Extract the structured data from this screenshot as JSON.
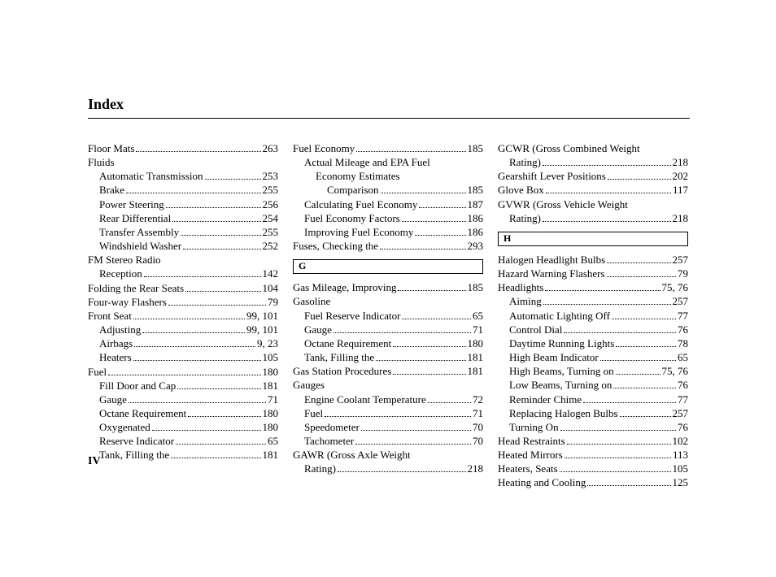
{
  "title": "Index",
  "footer": "IV",
  "columns": [
    {
      "items": [
        {
          "type": "entry",
          "label": "Floor Mats",
          "page": "263",
          "indent": 0
        },
        {
          "type": "entry",
          "label": "Fluids",
          "page": "",
          "indent": 0,
          "nodots": true
        },
        {
          "type": "entry",
          "label": "Automatic Transmission",
          "page": "253",
          "indent": 1
        },
        {
          "type": "entry",
          "label": "Brake",
          "page": "255",
          "indent": 1
        },
        {
          "type": "entry",
          "label": "Power Steering",
          "page": "256",
          "indent": 1
        },
        {
          "type": "entry",
          "label": "Rear Differential",
          "page": "254",
          "indent": 1
        },
        {
          "type": "entry",
          "label": "Transfer Assembly",
          "page": "255",
          "indent": 1
        },
        {
          "type": "entry",
          "label": "Windshield Washer",
          "page": "252",
          "indent": 1
        },
        {
          "type": "entry",
          "label": "FM Stereo Radio",
          "page": "",
          "indent": 0,
          "nodots": true
        },
        {
          "type": "entry",
          "label": "Reception",
          "page": "142",
          "indent": 1
        },
        {
          "type": "entry",
          "label": "Folding the Rear Seats",
          "page": "104",
          "indent": 0
        },
        {
          "type": "entry",
          "label": "Four-way Flashers",
          "page": "79",
          "indent": 0
        },
        {
          "type": "entry",
          "label": "Front Seat",
          "page": "99, 101",
          "indent": 0
        },
        {
          "type": "entry",
          "label": "Adjusting",
          "page": "99, 101",
          "indent": 1
        },
        {
          "type": "entry",
          "label": "Airbags",
          "page": "9, 23",
          "indent": 1
        },
        {
          "type": "entry",
          "label": "Heaters",
          "page": "105",
          "indent": 1
        },
        {
          "type": "entry",
          "label": "Fuel",
          "page": "180",
          "indent": 0
        },
        {
          "type": "entry",
          "label": "Fill Door and Cap",
          "page": "181",
          "indent": 1
        },
        {
          "type": "entry",
          "label": "Gauge",
          "page": "71",
          "indent": 1
        },
        {
          "type": "entry",
          "label": "Octane Requirement",
          "page": "180",
          "indent": 1
        },
        {
          "type": "entry",
          "label": "Oxygenated",
          "page": "180",
          "indent": 1
        },
        {
          "type": "entry",
          "label": "Reserve Indicator",
          "page": "65",
          "indent": 1
        },
        {
          "type": "entry",
          "label": "Tank, Filling the",
          "page": "181",
          "indent": 1
        }
      ]
    },
    {
      "items": [
        {
          "type": "entry",
          "label": "Fuel Economy",
          "page": "185",
          "indent": 0
        },
        {
          "type": "entry",
          "label": "Actual Mileage and EPA Fuel",
          "page": "",
          "indent": 1,
          "nodots": true
        },
        {
          "type": "entry",
          "label": "Economy Estimates",
          "page": "",
          "indent": 2,
          "nodots": true
        },
        {
          "type": "entry",
          "label": "Comparison",
          "page": "185",
          "indent": 3
        },
        {
          "type": "entry",
          "label": "Calculating Fuel Economy",
          "page": "187",
          "indent": 1
        },
        {
          "type": "entry",
          "label": "Fuel Economy Factors",
          "page": "186",
          "indent": 1
        },
        {
          "type": "entry",
          "label": "Improving Fuel Economy",
          "page": "186",
          "indent": 1
        },
        {
          "type": "entry",
          "label": "Fuses, Checking the",
          "page": "293",
          "indent": 0
        },
        {
          "type": "section",
          "letter": "G"
        },
        {
          "type": "entry",
          "label": "Gas Mileage, Improving",
          "page": "185",
          "indent": 0
        },
        {
          "type": "entry",
          "label": "Gasoline",
          "page": "",
          "indent": 0,
          "nodots": true
        },
        {
          "type": "entry",
          "label": "Fuel Reserve Indicator",
          "page": "65",
          "indent": 1
        },
        {
          "type": "entry",
          "label": "Gauge",
          "page": "71",
          "indent": 1
        },
        {
          "type": "entry",
          "label": "Octane Requirement",
          "page": "180",
          "indent": 1
        },
        {
          "type": "entry",
          "label": "Tank, Filling the",
          "page": "181",
          "indent": 1
        },
        {
          "type": "entry",
          "label": "Gas Station Procedures",
          "page": "181",
          "indent": 0
        },
        {
          "type": "entry",
          "label": "Gauges",
          "page": "",
          "indent": 0,
          "nodots": true
        },
        {
          "type": "entry",
          "label": "Engine Coolant Temperature",
          "page": "72",
          "indent": 1
        },
        {
          "type": "entry",
          "label": "Fuel",
          "page": "71",
          "indent": 1
        },
        {
          "type": "entry",
          "label": "Speedometer",
          "page": "70",
          "indent": 1
        },
        {
          "type": "entry",
          "label": "Tachometer",
          "page": "70",
          "indent": 1
        },
        {
          "type": "entry",
          "label": "GAWR (Gross Axle Weight",
          "page": "",
          "indent": 0,
          "nodots": true
        },
        {
          "type": "entry",
          "label": "Rating)",
          "page": "218",
          "indent": 1
        }
      ]
    },
    {
      "items": [
        {
          "type": "entry",
          "label": "GCWR (Gross Combined Weight",
          "page": "",
          "indent": 0,
          "nodots": true
        },
        {
          "type": "entry",
          "label": "Rating)",
          "page": "218",
          "indent": 1
        },
        {
          "type": "entry",
          "label": "Gearshift Lever Positions",
          "page": "202",
          "indent": 0
        },
        {
          "type": "entry",
          "label": "Glove Box",
          "page": "117",
          "indent": 0
        },
        {
          "type": "entry",
          "label": "GVWR (Gross Vehicle Weight",
          "page": "",
          "indent": 0,
          "nodots": true
        },
        {
          "type": "entry",
          "label": "Rating)",
          "page": "218",
          "indent": 1
        },
        {
          "type": "section",
          "letter": "H"
        },
        {
          "type": "entry",
          "label": "Halogen Headlight Bulbs",
          "page": "257",
          "indent": 0
        },
        {
          "type": "entry",
          "label": "Hazard Warning Flashers",
          "page": "79",
          "indent": 0
        },
        {
          "type": "entry",
          "label": "Headlights",
          "page": "75, 76",
          "indent": 0
        },
        {
          "type": "entry",
          "label": "Aiming",
          "page": "257",
          "indent": 1
        },
        {
          "type": "entry",
          "label": "Automatic Lighting Off",
          "page": "77",
          "indent": 1
        },
        {
          "type": "entry",
          "label": "Control Dial",
          "page": "76",
          "indent": 1
        },
        {
          "type": "entry",
          "label": "Daytime Running Lights",
          "page": "78",
          "indent": 1
        },
        {
          "type": "entry",
          "label": "High Beam Indicator",
          "page": "65",
          "indent": 1
        },
        {
          "type": "entry",
          "label": "High Beams, Turning on",
          "page": "75, 76",
          "indent": 1
        },
        {
          "type": "entry",
          "label": "Low Beams, Turning on",
          "page": "76",
          "indent": 1
        },
        {
          "type": "entry",
          "label": "Reminder Chime",
          "page": "77",
          "indent": 1
        },
        {
          "type": "entry",
          "label": "Replacing Halogen Bulbs",
          "page": "257",
          "indent": 1
        },
        {
          "type": "entry",
          "label": "Turning On",
          "page": "76",
          "indent": 1
        },
        {
          "type": "entry",
          "label": "Head Restraints",
          "page": "102",
          "indent": 0
        },
        {
          "type": "entry",
          "label": "Heated Mirrors",
          "page": "113",
          "indent": 0
        },
        {
          "type": "entry",
          "label": "Heaters, Seats",
          "page": "105",
          "indent": 0
        },
        {
          "type": "entry",
          "label": "Heating and Cooling",
          "page": "125",
          "indent": 0
        }
      ]
    }
  ]
}
